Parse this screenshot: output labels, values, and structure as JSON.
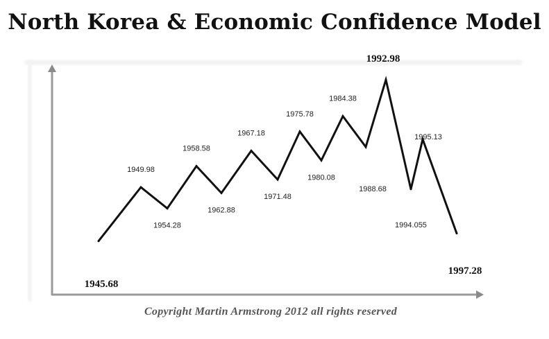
{
  "title": "North Korea & Economic Confidence Model",
  "copyright": "Copyright Martin Armstrong 2012 all rights reserved",
  "chart_data": {
    "type": "line",
    "title": "North Korea & Economic Confidence Model",
    "xlabel": "",
    "ylabel": "",
    "grid": false,
    "legend": "none",
    "line_color": "#111111",
    "points": [
      {
        "label": "1945.68",
        "kind": "trough",
        "x": 1945.68,
        "level": 0.16,
        "emphasis": true
      },
      {
        "label": "1949.98",
        "kind": "peak",
        "x": 1949.98,
        "level": 0.44,
        "emphasis": false
      },
      {
        "label": "1954.28",
        "kind": "trough",
        "x": 1954.28,
        "level": 0.33,
        "emphasis": false
      },
      {
        "label": "1958.58",
        "kind": "peak",
        "x": 1958.58,
        "level": 0.55,
        "emphasis": false
      },
      {
        "label": "1962.88",
        "kind": "trough",
        "x": 1962.88,
        "level": 0.41,
        "emphasis": false
      },
      {
        "label": "1967.18",
        "kind": "peak",
        "x": 1967.18,
        "level": 0.63,
        "emphasis": false
      },
      {
        "label": "1971.48",
        "kind": "trough",
        "x": 1971.48,
        "level": 0.48,
        "emphasis": false
      },
      {
        "label": "1975.78",
        "kind": "peak",
        "x": 1975.78,
        "level": 0.73,
        "emphasis": false
      },
      {
        "label": "1980.08",
        "kind": "trough",
        "x": 1980.08,
        "level": 0.58,
        "emphasis": false
      },
      {
        "label": "1984.38",
        "kind": "peak",
        "x": 1984.38,
        "level": 0.81,
        "emphasis": false
      },
      {
        "label": "1988.68",
        "kind": "trough",
        "x": 1988.68,
        "level": 0.65,
        "emphasis": false
      },
      {
        "label": "1992.98",
        "kind": "peak",
        "x": 1992.98,
        "level": 1.0,
        "emphasis": true
      },
      {
        "label": "1994.055",
        "kind": "trough",
        "x": 1994.055,
        "level": 0.43,
        "emphasis": false
      },
      {
        "label": "1995.13",
        "kind": "peak",
        "x": 1995.13,
        "level": 0.69,
        "emphasis": false
      },
      {
        "label": "1997.28",
        "kind": "trough",
        "x": 1997.28,
        "level": 0.2,
        "emphasis": true
      }
    ]
  }
}
